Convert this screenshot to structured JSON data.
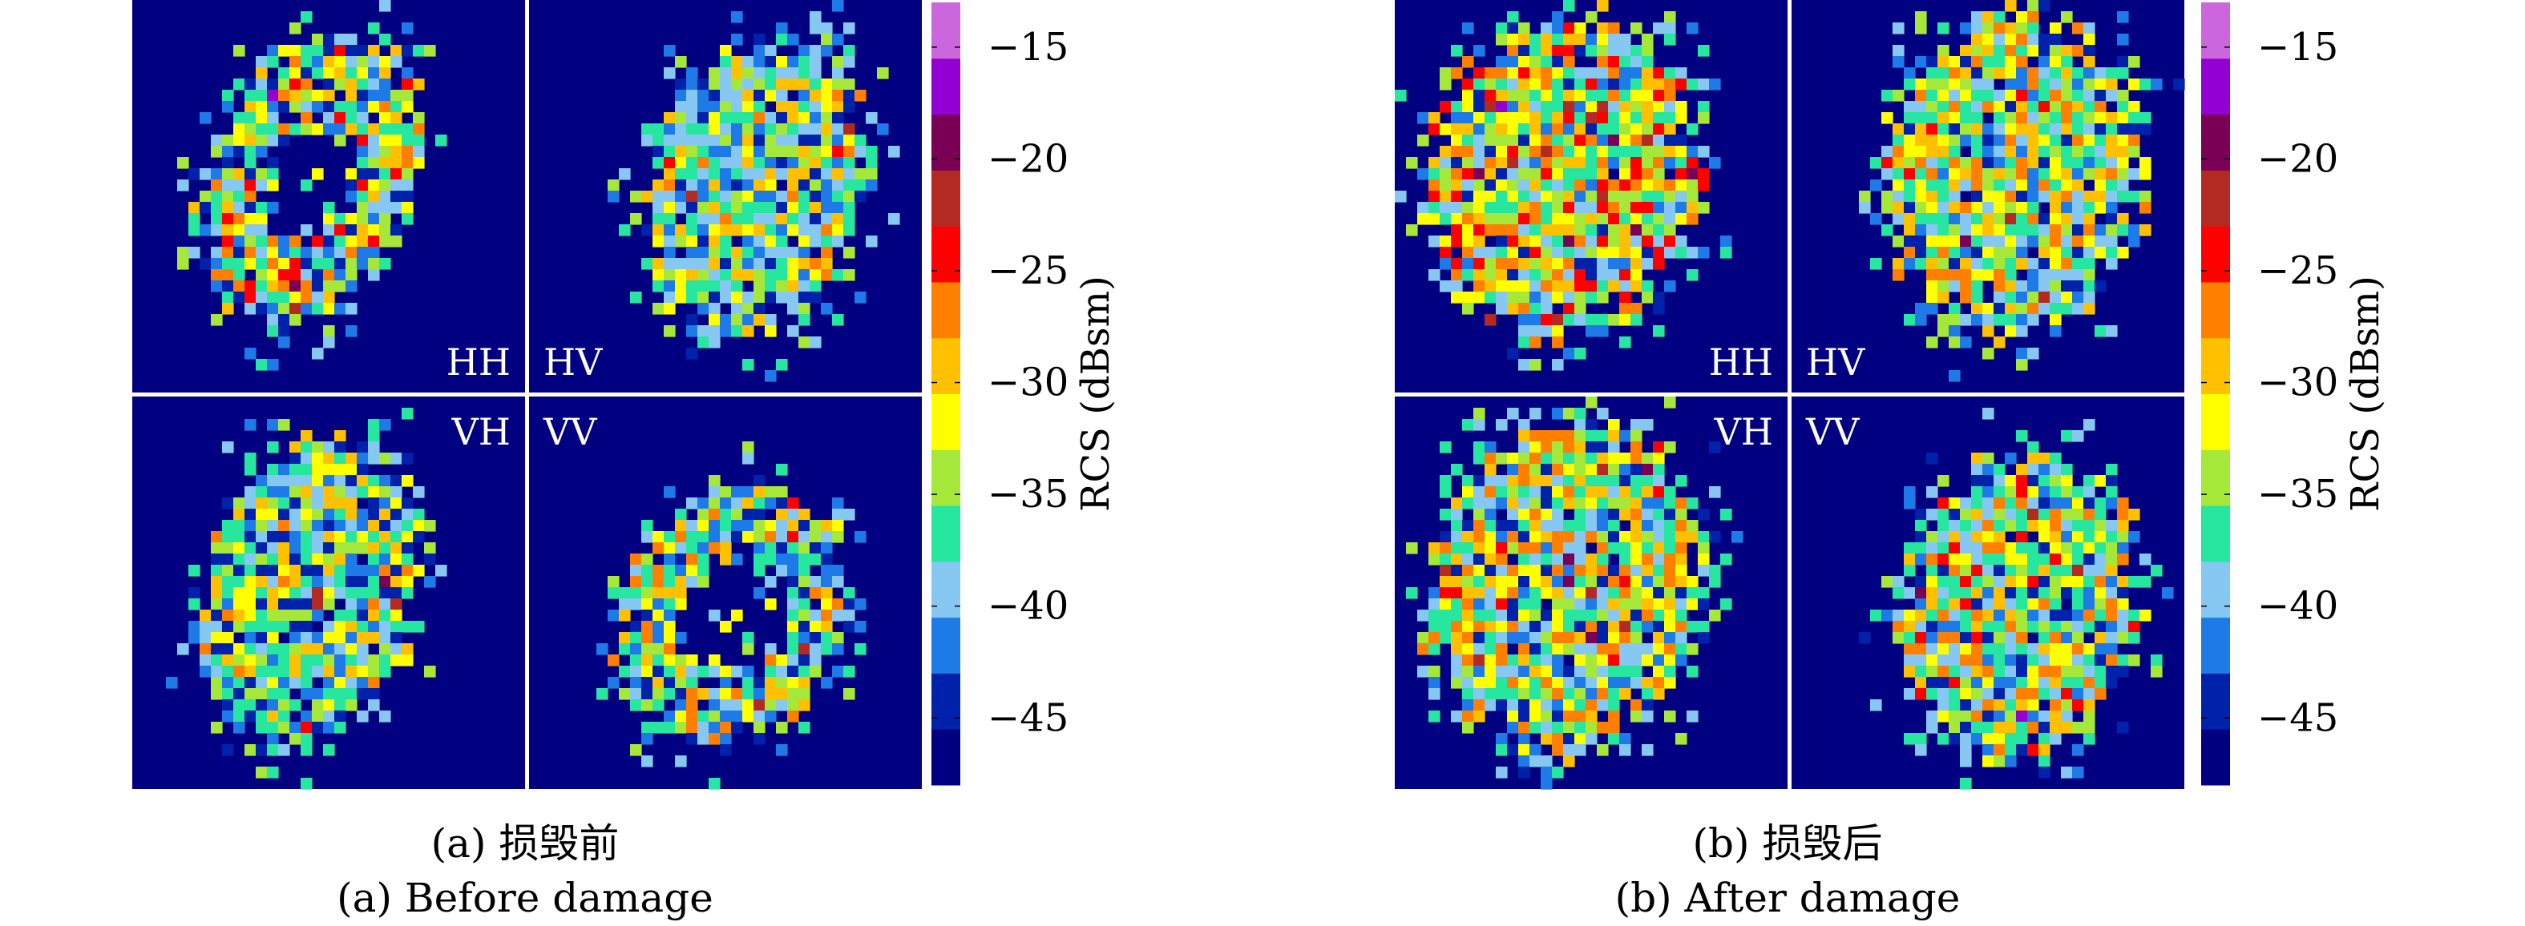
{
  "chart_data": [
    {
      "type": "heatmap",
      "caption_cn": "(a) 损毁前",
      "caption_en": "(a) Before damage",
      "panels": [
        {
          "label": "HH",
          "label_pos": "bottom-right",
          "shape": "ring",
          "cx": 0.45,
          "cy": 0.45,
          "rx": 0.25,
          "ry": 0.38,
          "tilt": -20,
          "hole": 0.45,
          "fill": 0.62,
          "strength": 0.78
        },
        {
          "label": "HV",
          "label_pos": "bottom-left",
          "shape": "blob",
          "cx": 0.58,
          "cy": 0.47,
          "rx": 0.27,
          "ry": 0.39,
          "tilt": -15,
          "hole": 0.0,
          "fill": 0.48,
          "strength": 0.6
        },
        {
          "label": "VH",
          "label_pos": "top-right",
          "shape": "blob",
          "cx": 0.46,
          "cy": 0.49,
          "rx": 0.26,
          "ry": 0.4,
          "tilt": -15,
          "hole": 0.0,
          "fill": 0.5,
          "strength": 0.6
        },
        {
          "label": "VV",
          "label_pos": "top-left",
          "shape": "ring",
          "cx": 0.52,
          "cy": 0.56,
          "rx": 0.27,
          "ry": 0.33,
          "tilt": -30,
          "hole": 0.5,
          "fill": 0.55,
          "strength": 0.68
        }
      ],
      "colorbar": {
        "title": "RCS (dBsm)",
        "ticks": [
          -15,
          -20,
          -25,
          -30,
          -35,
          -40,
          -45
        ],
        "range": [
          -48,
          -13
        ],
        "colors": [
          "#000080",
          "#0022aa",
          "#1e7ae6",
          "#86c8f2",
          "#26e6a0",
          "#a6e83a",
          "#ffff00",
          "#ffc000",
          "#ff8000",
          "#ff0000",
          "#b22a22",
          "#7a0055",
          "#9400d3",
          "#cc66dd"
        ]
      }
    },
    {
      "type": "heatmap",
      "caption_cn": "(b) 损毁后",
      "caption_en": "(b) After damage",
      "panels": [
        {
          "label": "HH",
          "label_pos": "bottom-right",
          "shape": "blob",
          "cx": 0.44,
          "cy": 0.44,
          "rx": 0.34,
          "ry": 0.4,
          "tilt": -10,
          "hole": 0.0,
          "fill": 0.74,
          "strength": 0.82
        },
        {
          "label": "HV",
          "label_pos": "bottom-left",
          "shape": "blob",
          "cx": 0.56,
          "cy": 0.44,
          "rx": 0.33,
          "ry": 0.4,
          "tilt": -10,
          "hole": 0.0,
          "fill": 0.62,
          "strength": 0.7
        },
        {
          "label": "VH",
          "label_pos": "top-right",
          "shape": "blob",
          "cx": 0.44,
          "cy": 0.48,
          "rx": 0.34,
          "ry": 0.42,
          "tilt": -10,
          "hole": 0.0,
          "fill": 0.64,
          "strength": 0.72
        },
        {
          "label": "VV",
          "label_pos": "top-left",
          "shape": "blob",
          "cx": 0.58,
          "cy": 0.53,
          "rx": 0.3,
          "ry": 0.38,
          "tilt": -10,
          "hole": 0.0,
          "fill": 0.66,
          "strength": 0.76
        }
      ],
      "colorbar": {
        "title": "RCS (dBsm)",
        "ticks": [
          -15,
          -20,
          -25,
          -30,
          -35,
          -40,
          -45
        ],
        "range": [
          -48,
          -13
        ],
        "colors": [
          "#000080",
          "#0022aa",
          "#1e7ae6",
          "#86c8f2",
          "#26e6a0",
          "#a6e83a",
          "#ffff00",
          "#ffc000",
          "#ff8000",
          "#ff0000",
          "#b22a22",
          "#7a0055",
          "#9400d3",
          "#cc66dd"
        ]
      }
    }
  ],
  "background_color": "#000080",
  "divider_color": "#ffffff"
}
